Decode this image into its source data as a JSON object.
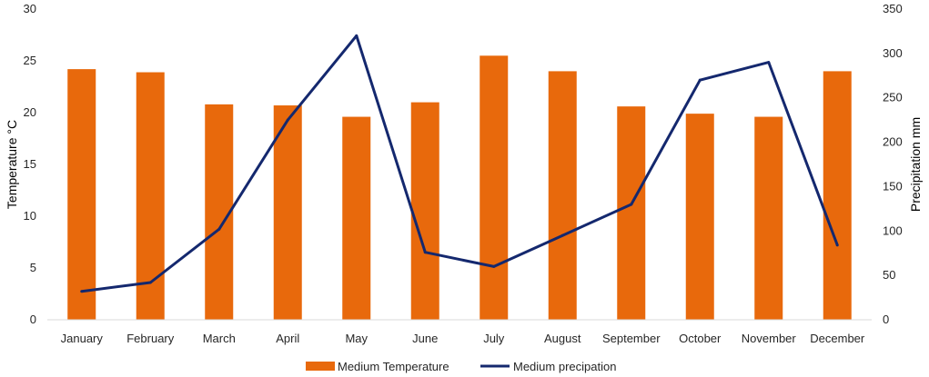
{
  "chart_data": {
    "type": "bar",
    "categories": [
      "January",
      "February",
      "March",
      "April",
      "May",
      "June",
      "July",
      "August",
      "September",
      "October",
      "November",
      "December"
    ],
    "series": [
      {
        "name": "Medium Temperature",
        "type": "bar",
        "axis": "left",
        "color": "#E8690C",
        "values": [
          24.2,
          23.9,
          20.8,
          20.7,
          19.6,
          21.0,
          25.5,
          24.0,
          20.6,
          19.9,
          19.6,
          24.0
        ]
      },
      {
        "name": "Medium precipation",
        "type": "line",
        "axis": "right",
        "color": "#14286E",
        "values": [
          32,
          42,
          102,
          225,
          320,
          76,
          60,
          95,
          130,
          270,
          290,
          84
        ]
      }
    ],
    "ylabel": "Temperature °C",
    "y2label": "Precipitation mm",
    "ylim": [
      0,
      30
    ],
    "y2lim": [
      0,
      350
    ],
    "yticks": [
      0,
      5,
      10,
      15,
      20,
      25,
      30
    ],
    "y2ticks": [
      0,
      50,
      100,
      150,
      200,
      250,
      300,
      350
    ],
    "grid": false,
    "legend": "bottom"
  }
}
